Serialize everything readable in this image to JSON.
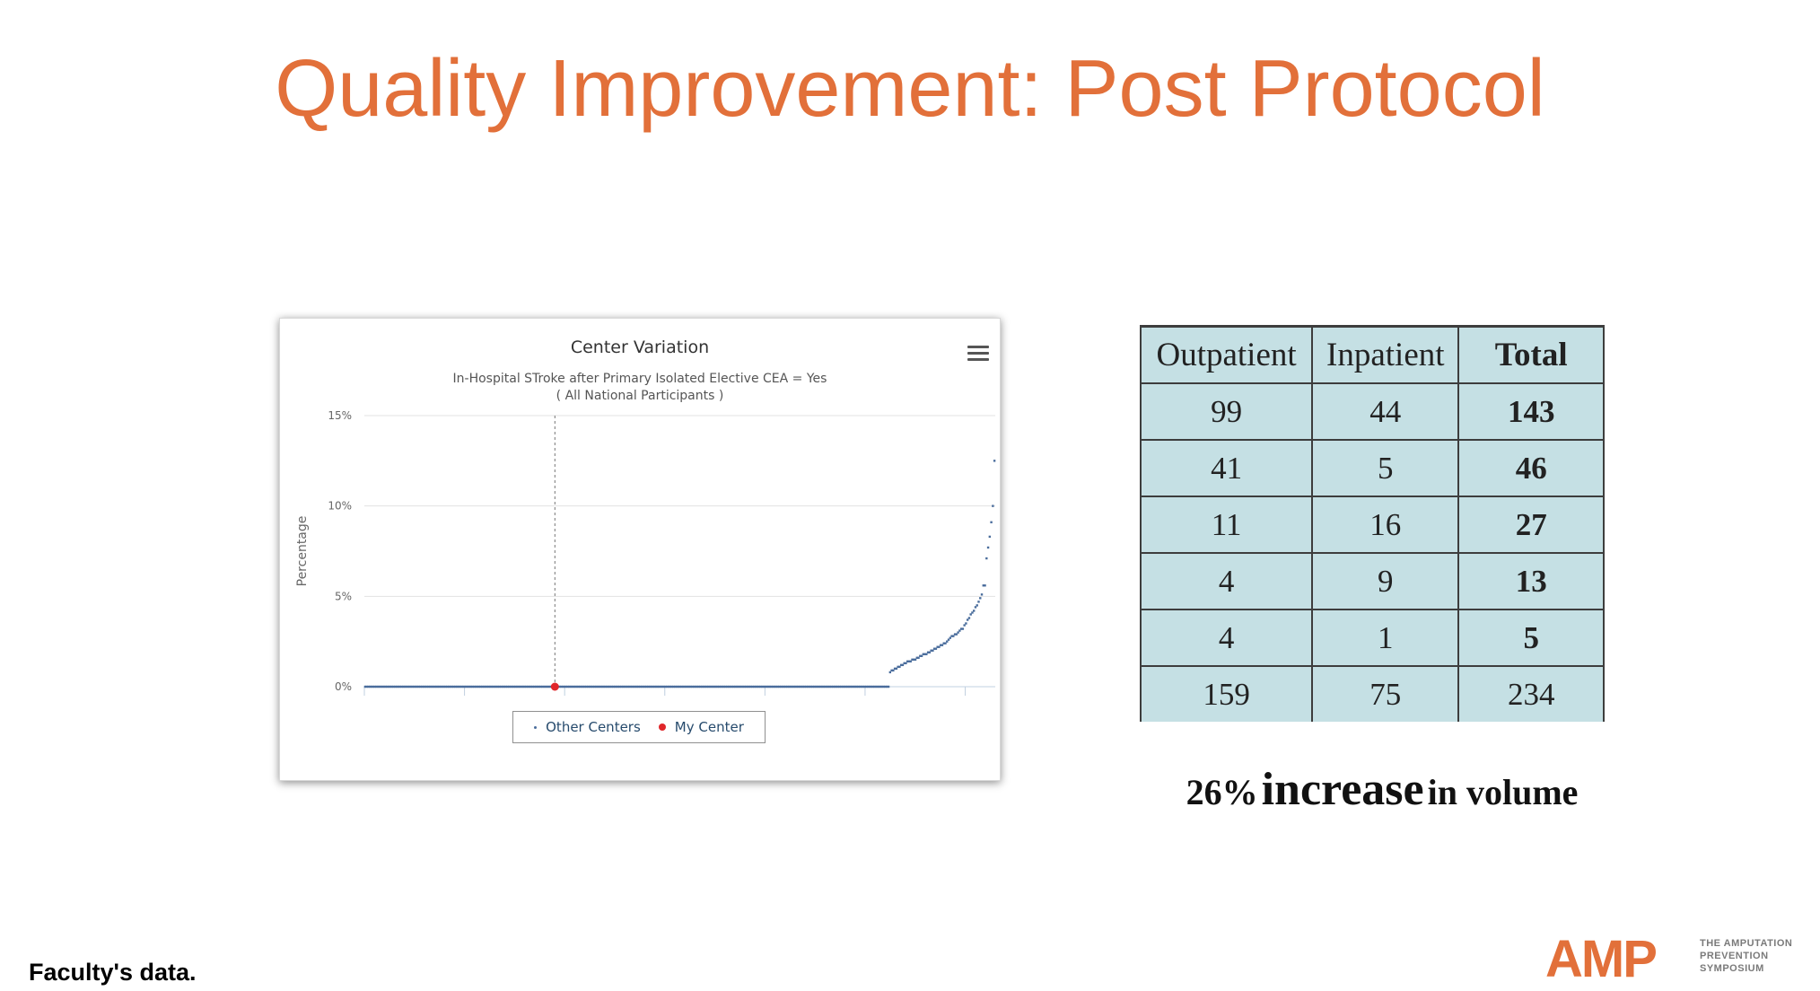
{
  "slide": {
    "title": "Quality Improvement: Post Protocol",
    "note": "Faculty's data."
  },
  "logo": {
    "mark": "AMP",
    "line1": "THE AMPUTATION",
    "line2": "PREVENTION",
    "line3": "SYMPOSIUM",
    "color": "#E2703A"
  },
  "chart_data": {
    "type": "scatter",
    "title": "Center Variation",
    "subtitle_line1": "In-Hospital STroke after Primary Isolated Elective CEA = Yes",
    "subtitle_line2": "( All National Participants )",
    "ylabel": "Percentage",
    "ylim": [
      0,
      15
    ],
    "yticks": [
      "0%",
      "5%",
      "10%",
      "15%"
    ],
    "grid": true,
    "legend_placement": "bottom-center",
    "menu_icon": "hamburger-menu-icon",
    "series": [
      {
        "name": "Other Centers",
        "color": "#4a6d9c",
        "values": [
          0,
          0,
          0,
          0,
          0,
          0,
          0,
          0,
          0,
          0,
          0,
          0,
          0,
          0,
          0,
          0,
          0,
          0,
          0,
          0,
          0,
          0,
          0,
          0,
          0,
          0,
          0,
          0,
          0,
          0,
          0,
          0,
          0,
          0,
          0,
          0,
          0,
          0,
          0,
          0,
          0,
          0,
          0,
          0,
          0,
          0,
          0,
          0,
          0,
          0,
          0,
          0,
          0,
          0,
          0,
          0,
          0,
          0,
          0,
          0,
          0,
          0,
          0,
          0,
          0,
          0,
          0,
          0,
          0,
          0,
          0,
          0,
          0,
          0,
          0,
          0,
          0,
          0,
          0,
          0,
          0,
          0,
          0,
          0,
          0,
          0,
          0,
          0,
          0,
          0,
          0,
          0,
          0,
          0,
          0,
          0,
          0,
          0,
          0,
          0,
          0,
          0,
          0,
          0,
          0,
          0,
          0,
          0,
          0,
          0,
          0,
          0,
          0,
          0,
          0,
          0,
          0,
          0,
          0,
          0,
          0,
          0,
          0,
          0,
          0,
          0,
          0,
          0,
          0,
          0,
          0,
          0,
          0,
          0,
          0,
          0,
          0,
          0,
          0,
          0,
          0,
          0,
          0,
          0,
          0,
          0,
          0,
          0,
          0,
          0,
          0,
          0,
          0,
          0,
          0,
          0,
          0,
          0,
          0,
          0,
          0,
          0,
          0,
          0,
          0,
          0,
          0,
          0,
          0,
          0,
          0,
          0,
          0,
          0,
          0,
          0,
          0,
          0,
          0,
          0,
          0,
          0,
          0,
          0,
          0,
          0,
          0,
          0,
          0,
          0,
          0,
          0,
          0,
          0,
          0,
          0,
          0,
          0,
          0,
          0,
          0,
          0,
          0,
          0,
          0,
          0,
          0,
          0,
          0,
          0,
          0,
          0,
          0,
          0,
          0,
          0,
          0,
          0,
          0,
          0,
          0,
          0,
          0,
          0,
          0,
          0,
          0,
          0,
          0,
          0,
          0,
          0,
          0,
          0,
          0,
          0,
          0,
          0,
          0,
          0,
          0,
          0,
          0,
          0,
          0,
          0,
          0,
          0,
          0,
          0,
          0,
          0,
          0,
          0,
          0,
          0,
          0,
          0,
          0,
          0,
          0,
          0,
          0,
          0,
          0,
          0,
          0,
          0,
          0,
          0,
          0,
          0,
          0,
          0,
          0,
          0,
          0,
          0,
          0,
          0,
          0,
          0,
          0,
          0,
          0,
          0,
          0,
          0,
          0,
          0,
          0,
          0,
          0,
          0,
          0,
          0,
          0,
          0,
          0,
          0,
          0,
          0,
          0,
          0,
          0,
          0,
          0,
          0,
          0,
          0,
          0,
          0,
          0,
          0,
          0,
          0,
          0,
          0,
          0,
          0,
          0,
          0,
          0,
          0,
          0,
          0,
          0,
          0,
          0,
          0,
          0,
          0,
          0.8,
          0.9,
          0.9,
          1.0,
          1.0,
          1.1,
          1.1,
          1.2,
          1.2,
          1.3,
          1.3,
          1.4,
          1.4,
          1.4,
          1.5,
          1.5,
          1.5,
          1.6,
          1.6,
          1.7,
          1.7,
          1.8,
          1.8,
          1.8,
          1.9,
          1.9,
          2.0,
          2.0,
          2.1,
          2.1,
          2.2,
          2.2,
          2.3,
          2.3,
          2.4,
          2.4,
          2.5,
          2.6,
          2.7,
          2.8,
          2.8,
          2.9,
          2.9,
          3.0,
          3.1,
          3.2,
          3.2,
          3.4,
          3.5,
          3.7,
          3.8,
          4.0,
          4.1,
          4.2,
          4.4,
          4.5,
          4.7,
          4.9,
          5.1,
          5.6,
          5.6,
          7.1,
          7.7,
          8.3,
          9.1,
          10.0,
          12.5
        ],
        "label_other": "Other Centers"
      },
      {
        "name": "My Center",
        "color": "#e0262a",
        "index": 120,
        "values": [
          0
        ]
      }
    ],
    "highlight_line_index": 120
  },
  "volume_table": {
    "headers": [
      "Outpatient",
      "Inpatient",
      "Total"
    ],
    "rows": [
      [
        "99",
        "44",
        "143"
      ],
      [
        "41",
        "5",
        "46"
      ],
      [
        "11",
        "16",
        "27"
      ],
      [
        "4",
        "9",
        "13"
      ],
      [
        "4",
        "1",
        "5"
      ]
    ],
    "totals": [
      "159",
      "75",
      "234"
    ]
  },
  "summary": {
    "pct": "26%",
    "word": "increase",
    "rest": "in volume"
  }
}
